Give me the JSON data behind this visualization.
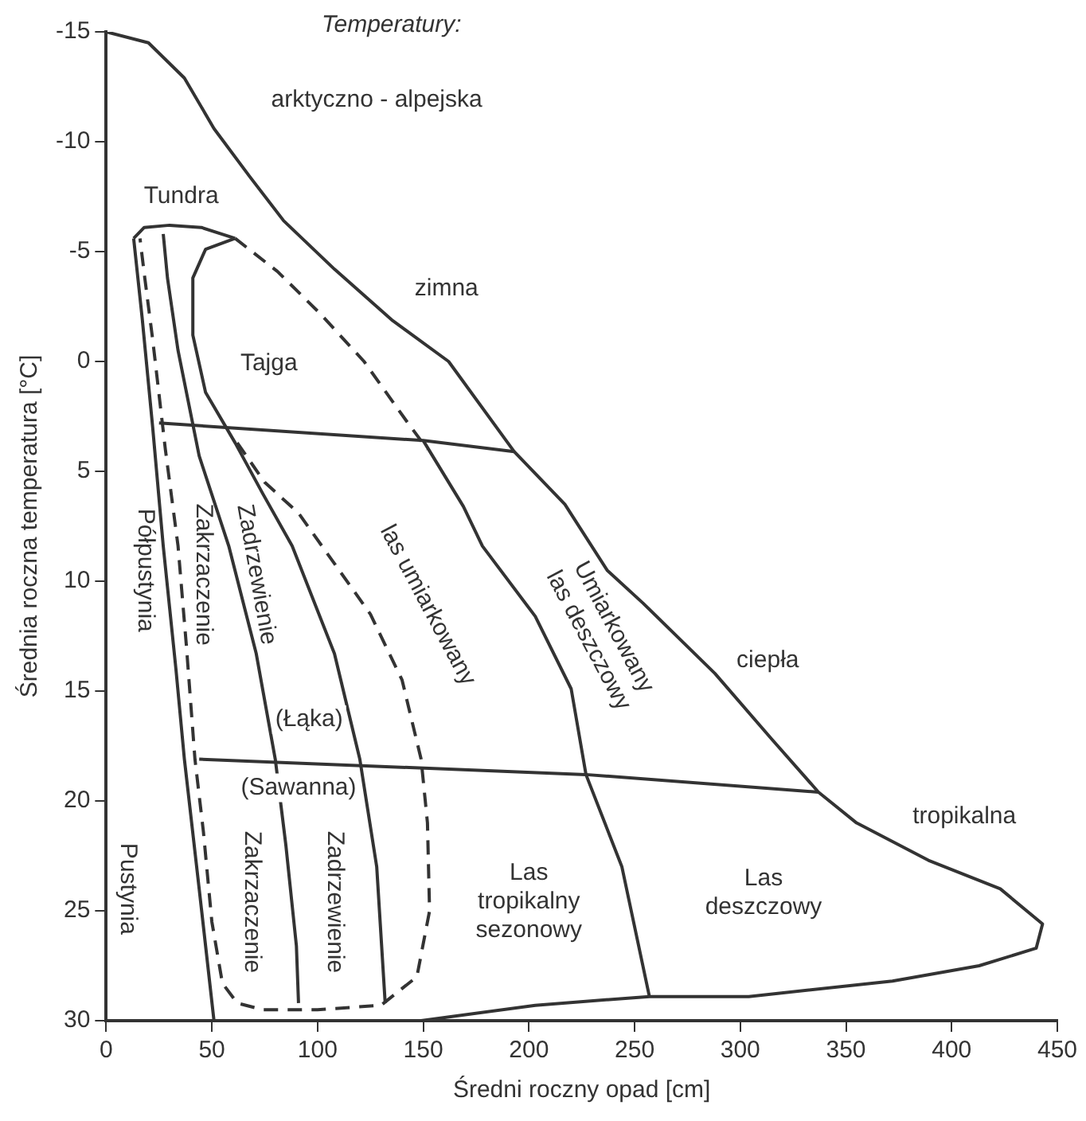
{
  "chart_data": {
    "type": "line",
    "xlabel": "Średni roczny opad [cm]",
    "ylabel": "Średnia roczna temperatura [°C]",
    "xlim": [
      0,
      450
    ],
    "xticks": [
      0,
      50,
      100,
      150,
      200,
      250,
      300,
      350,
      400,
      450
    ],
    "ylim": [
      30,
      -15
    ],
    "yticks": [
      -15,
      -10,
      -5,
      0,
      5,
      10,
      15,
      20,
      25,
      30
    ],
    "grid": false,
    "legend": false,
    "marker": "none",
    "series": [
      {
        "color": "#333333",
        "line_style": "solid",
        "x": [
          0,
          20,
          37,
          51,
          68,
          84,
          108,
          135,
          162,
          193,
          217,
          237,
          254,
          288,
          315,
          337,
          355,
          389,
          423,
          443,
          440,
          413,
          372,
          304,
          257,
          203,
          149
        ],
        "values": [
          -15,
          -14.5,
          -12.9,
          -10.6,
          -8.4,
          -6.4,
          -4.2,
          -1.9,
          0,
          4.1,
          6.5,
          9.5,
          11,
          14.2,
          17.2,
          19.6,
          21,
          22.7,
          24,
          25.6,
          26.7,
          27.5,
          28.2,
          28.9,
          28.9,
          29.3,
          30
        ]
      },
      {
        "color": "#333333",
        "line_style": "solid",
        "x": [
          13,
          18,
          30,
          45,
          61
        ],
        "values": [
          -5.6,
          -6.1,
          -6.2,
          -6.1,
          -5.6
        ]
      },
      {
        "color": "#333333",
        "line_style": "solid",
        "x": [
          13,
          17,
          22,
          27,
          33,
          37,
          44,
          51
        ],
        "values": [
          -5.6,
          -2,
          3,
          8.4,
          14,
          18.1,
          24,
          30
        ]
      },
      {
        "color": "#333333",
        "line_style": "solid",
        "x": [
          27,
          29,
          34,
          44,
          58,
          71,
          80,
          85,
          90,
          91
        ],
        "values": [
          -5.8,
          -3.8,
          -0.5,
          4.3,
          8.4,
          13.3,
          18.1,
          22,
          26.6,
          29.2
        ]
      },
      {
        "color": "#333333",
        "line_style": "solid",
        "x": [
          61,
          47,
          41,
          41,
          47,
          61,
          74,
          88,
          108,
          120,
          128,
          132
        ],
        "values": [
          -5.6,
          -5.1,
          -3.8,
          -1.2,
          1.4,
          3.7,
          6,
          8.4,
          13.3,
          18.1,
          23,
          29.2
        ]
      },
      {
        "color": "#333333",
        "line_style": "dashed",
        "x": [
          61,
          81,
          101,
          122,
          142,
          152
        ],
        "values": [
          -5.6,
          -4.1,
          -2.2,
          0,
          2.7,
          4
        ]
      },
      {
        "color": "#333333",
        "line_style": "dashed",
        "x": [
          62,
          75,
          91,
          108,
          125,
          140,
          149,
          152,
          153,
          147,
          130,
          100,
          74,
          62,
          55,
          50,
          46,
          42,
          38,
          34,
          28,
          22,
          18,
          16
        ],
        "values": [
          3.7,
          5.5,
          6.9,
          9.2,
          11.5,
          14.5,
          18.1,
          21,
          25,
          28,
          29.3,
          29.5,
          29.5,
          29.2,
          28.3,
          25.5,
          21.4,
          18.1,
          13,
          8.4,
          4,
          -1,
          -4,
          -5.6
        ]
      },
      {
        "color": "#333333",
        "line_style": "solid",
        "x": [
          25,
          150,
          193
        ],
        "values": [
          2.8,
          3.6,
          4.1
        ]
      },
      {
        "color": "#333333",
        "line_style": "solid",
        "x": [
          44,
          227,
          337
        ],
        "values": [
          18.1,
          18.8,
          19.6
        ]
      },
      {
        "color": "#333333",
        "line_style": "solid",
        "x": [
          150,
          169,
          178,
          203,
          220,
          227,
          244,
          257
        ],
        "values": [
          3.6,
          6.6,
          8.4,
          11.6,
          14.9,
          18.8,
          23,
          28.9
        ]
      }
    ],
    "annotations": [
      "Temperatury:",
      "arktyczno - alpejska",
      "Tundra",
      "zimna",
      "Tajga",
      "Półpustynia",
      "Zakrzaczenie",
      "Zadrzewienie",
      "las umiarkowany",
      "Umiarkowany\nlas deszczowy",
      "ciepła",
      "(Łąka)",
      "(Sawanna)",
      "tropikalna",
      "Pustynia",
      "Zakrzaczenie",
      "Zadrzewienie",
      "Las\ntropikalny\nsezonowy",
      "Las\ndeszczowy"
    ]
  }
}
